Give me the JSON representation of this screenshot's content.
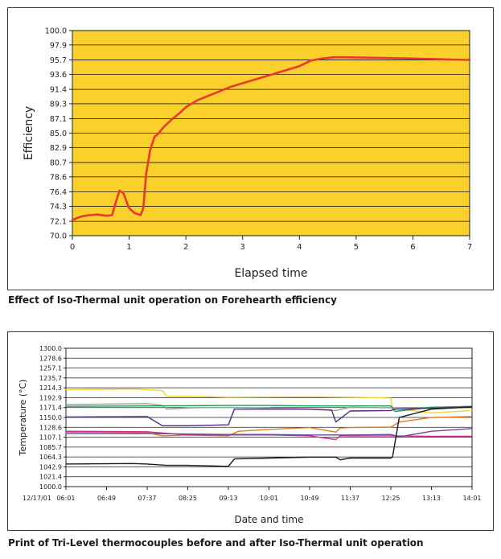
{
  "charts": [
    {
      "caption": "Effect of Iso-Thermal unit operation on Forehearth efficiency",
      "chart_data": {
        "type": "line",
        "title": "",
        "xlabel": "Elapsed time",
        "ylabel": "Efficiency",
        "xlim": [
          0,
          7
        ],
        "ylim": [
          70.0,
          100.0
        ],
        "x_ticks": [
          "0",
          "1",
          "2",
          "3",
          "4",
          "5",
          "6",
          "7"
        ],
        "y_ticks": [
          "70.0",
          "72.1",
          "74.3",
          "76.4",
          "78.6",
          "80.7",
          "82.9",
          "85.0",
          "87.1",
          "89.3",
          "91.4",
          "93.6",
          "95.7",
          "97.9",
          "100.0"
        ],
        "grid": "horizontal",
        "background_color": "#FAD02C",
        "series": [
          {
            "color": "#E8392B",
            "x": [
              0,
              0.15,
              0.3,
              0.45,
              0.6,
              0.7,
              0.77,
              0.83,
              0.9,
              1.0,
              1.1,
              1.2,
              1.25,
              1.3,
              1.37,
              1.45,
              1.5,
              1.6,
              1.75,
              1.9,
              2.0,
              2.2,
              2.5,
              2.8,
              3.2,
              3.6,
              4.0,
              4.2,
              4.4,
              4.6,
              4.8,
              5.5,
              6.0,
              6.5,
              7.0
            ],
            "y": [
              72.3,
              72.8,
              73.0,
              73.1,
              72.9,
              73.0,
              75.0,
              76.6,
              76.2,
              74.0,
              73.3,
              73.0,
              74.0,
              79.0,
              82.5,
              84.5,
              84.8,
              85.8,
              87.0,
              88.0,
              88.8,
              89.8,
              90.8,
              91.8,
              92.8,
              93.8,
              94.8,
              95.6,
              95.9,
              96.1,
              96.1,
              96.0,
              95.9,
              95.8,
              95.7
            ]
          }
        ]
      }
    },
    {
      "caption": "Print of Tri-Level thermocouples before and after Iso-Thermal unit operation",
      "chart_data": {
        "type": "line",
        "title": "",
        "xlabel": "Date and time",
        "ylabel": "Temperature (°C)",
        "date_label": "12/17/01",
        "x_ticks": [
          "06:01",
          "06:49",
          "07:37",
          "08:25",
          "09:13",
          "10:01",
          "10:49",
          "11:37",
          "12:25",
          "13:13",
          "14:01"
        ],
        "xlim": [
          "06:01",
          "14:01"
        ],
        "y_ticks": [
          "1000.0",
          "1021.4",
          "1042.9",
          "1064.3",
          "1085.7",
          "1107.1",
          "1128.6",
          "1150.0",
          "1171.4",
          "1192.9",
          "1214.3",
          "1235.7",
          "1257.1",
          "1278.6",
          "1300.0"
        ],
        "ylim": [
          1000.0,
          1300.0
        ],
        "grid": "horizontal",
        "series": [
          {
            "color": "#F0D23A",
            "x": [
              "06:01",
              "07:20",
              "07:55",
              "08:00",
              "08:30",
              "09:13",
              "10:49",
              "11:37",
              "12:25",
              "12:27",
              "13:13",
              "14:01"
            ],
            "y": [
              1210,
              1212,
              1208,
              1196,
              1196,
              1194,
              1195,
              1194,
              1192,
              1170,
              1160,
              1165
            ]
          },
          {
            "color": "#9E9E9E",
            "x": [
              "06:01",
              "07:37",
              "07:55",
              "08:00",
              "08:30",
              "09:13",
              "10:01",
              "10:49",
              "11:20",
              "11:37",
              "12:25",
              "13:13",
              "14:01"
            ],
            "y": [
              1178,
              1180,
              1176,
              1168,
              1171,
              1172,
              1170,
              1168,
              1165,
              1172,
              1171,
              1172,
              1174
            ]
          },
          {
            "color": "#1E9A57",
            "x": [
              "06:01",
              "07:37",
              "09:13",
              "10:01",
              "10:49",
              "11:37",
              "12:25",
              "12:30",
              "13:13",
              "14:01"
            ],
            "y": [
              1174,
              1175,
              1176,
              1176,
              1175,
              1175,
              1175,
              1163,
              1172,
              1174
            ]
          },
          {
            "color": "#4B2C7D",
            "x": [
              "06:01",
              "07:37",
              "07:55",
              "08:25",
              "09:13",
              "09:20",
              "10:01",
              "10:49",
              "11:15",
              "11:20",
              "11:37",
              "12:25",
              "12:30",
              "13:13",
              "14:01"
            ],
            "y": [
              1151,
              1152,
              1132,
              1132,
              1134,
              1168,
              1168,
              1168,
              1166,
              1140,
              1164,
              1165,
              1168,
              1170,
              1172
            ]
          },
          {
            "color": "#E07A25",
            "x": [
              "06:01",
              "07:37",
              "07:55",
              "08:25",
              "09:13",
              "09:25",
              "10:01",
              "10:49",
              "11:20",
              "11:25",
              "11:37",
              "12:25",
              "12:35",
              "13:13",
              "14:01"
            ],
            "y": [
              1118,
              1117,
              1110,
              1112,
              1110,
              1120,
              1124,
              1128,
              1118,
              1127,
              1128,
              1129,
              1140,
              1150,
              1152
            ]
          },
          {
            "color": "#D12A8F",
            "x": [
              "06:01",
              "07:37",
              "08:25",
              "09:13",
              "10:01",
              "10:49",
              "11:20",
              "11:25",
              "11:37",
              "12:25",
              "13:13",
              "14:01"
            ],
            "y": [
              1120,
              1119,
              1112,
              1112,
              1112,
              1110,
              1102,
              1110,
              1110,
              1110,
              1109,
              1109
            ]
          },
          {
            "color": "#6A4A9A",
            "x": [
              "06:01",
              "07:37",
              "08:25",
              "09:13",
              "10:01",
              "10:49",
              "11:37",
              "12:25",
              "12:35",
              "13:13",
              "14:01"
            ],
            "y": [
              1115,
              1115,
              1114,
              1113,
              1113,
              1112,
              1112,
              1113,
              1108,
              1120,
              1126
            ]
          },
          {
            "color": "#1A1A1A",
            "x": [
              "06:01",
              "07:20",
              "07:37",
              "08:00",
              "08:25",
              "09:13",
              "09:20",
              "10:01",
              "10:49",
              "11:20",
              "11:25",
              "11:37",
              "12:25",
              "12:27",
              "12:35",
              "13:13",
              "14:01"
            ],
            "y": [
              1049,
              1050,
              1049,
              1046,
              1046,
              1044,
              1060,
              1062,
              1064,
              1064,
              1058,
              1062,
              1062,
              1064,
              1150,
              1168,
              1173
            ]
          }
        ]
      }
    }
  ]
}
